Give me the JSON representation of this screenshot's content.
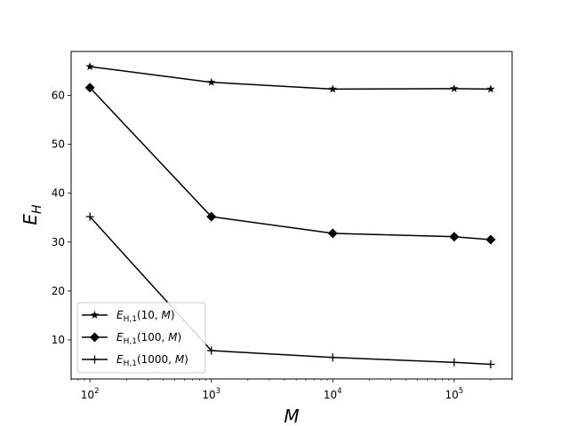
{
  "chart_data": {
    "type": "line",
    "xlabel": "M",
    "ylabel": "E",
    "ylabel_sub": "H",
    "xscale": "log",
    "xlim": [
      70,
      300000
    ],
    "ylim": [
      2.0,
      69.0
    ],
    "grid": false,
    "legend_position": "lower-left",
    "x_ticks": [
      {
        "label": "10",
        "exp": "2",
        "value": 100
      },
      {
        "label": "10",
        "exp": "3",
        "value": 1000
      },
      {
        "label": "10",
        "exp": "4",
        "value": 10000
      },
      {
        "label": "10",
        "exp": "5",
        "value": 100000
      }
    ],
    "y_ticks": [
      10,
      20,
      30,
      40,
      50,
      60
    ],
    "x": [
      100,
      1000,
      10000,
      100000,
      200000
    ],
    "series": [
      {
        "name": "E_{H,1}(10, M)",
        "legend": {
          "base": "E",
          "sub": "H,1",
          "args": "(10, ",
          "var": "M",
          "close": ")"
        },
        "marker": "star",
        "color": "#000000",
        "values": [
          65.9,
          62.7,
          61.3,
          61.4,
          61.3
        ]
      },
      {
        "name": "E_{H,1}(100, M)",
        "legend": {
          "base": "E",
          "sub": "H,1",
          "args": "(100, ",
          "var": "M",
          "close": ")"
        },
        "marker": "diamond",
        "color": "#000000",
        "values": [
          61.6,
          35.2,
          31.8,
          31.1,
          30.5
        ]
      },
      {
        "name": "E_{H,1}(1000, M)",
        "legend": {
          "base": "E",
          "sub": "H,1",
          "args": "(1000, ",
          "var": "M",
          "close": ")"
        },
        "marker": "plus",
        "color": "#000000",
        "values": [
          35.2,
          7.8,
          6.4,
          5.4,
          5.0
        ]
      }
    ]
  }
}
